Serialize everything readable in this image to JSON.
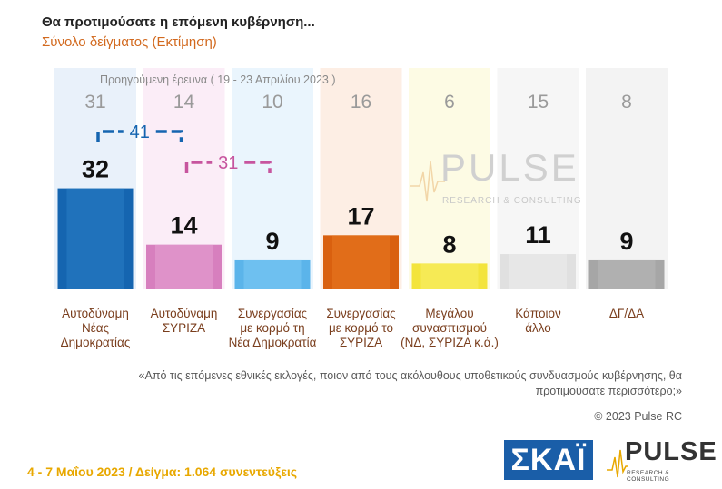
{
  "title": "Θα προτιμούσατε η επόμενη κυβέρνηση...",
  "subtitle": "Σύνολο δείγματος  (Εκτίμηση)",
  "previous_label": "Προηγούμενη έρευνα  ( 19 - 23 Απριλίου  2023 )",
  "question": "«Από τις επόμενες εθνικές εκλογές, ποιον από τους ακόλουθους υποθετικούς συνδυασμούς κυβέρνησης, θα προτιμούσατε περισσότερο;»",
  "copyright": "© 2023 Pulse RC",
  "footer": "4 - 7  Μαΐου  2023  /  Δείγμα:  1.064 συνεντεύξεις",
  "logos": {
    "skai": "ΣΚΑΪ",
    "pulse": "PULSE",
    "pulse_sub": "RESEARCH & CONSULTING",
    "watermark": "PULSE",
    "watermark_sub": "RESEARCH & CONSULTING"
  },
  "colors": {
    "bars": [
      "#1565b0",
      "#d77fbe",
      "#5bb4ea",
      "#d9600f",
      "#f3e43c",
      "#e0e0e0",
      "#a6a6a6"
    ],
    "bars_light": [
      "#2a7ec4",
      "#e6a2d2",
      "#7ecaf4",
      "#e87822",
      "#f8ee6a",
      "#ececec",
      "#b8b8b8"
    ],
    "bg": [
      "#e9f1fa",
      "#fbedf7",
      "#eaf5fd",
      "#fdeee4",
      "#fdfbe4",
      "#f6f6f6",
      "#f3f3f3"
    ],
    "bracket1": "#1565b0",
    "bracket2": "#c7559e"
  },
  "chart_data": {
    "type": "bar",
    "categories": [
      [
        "Αυτοδύναμη",
        "Νέας",
        "Δημοκρατίας"
      ],
      [
        "Αυτοδύναμη",
        "ΣΥΡΙΖΑ"
      ],
      [
        "Συνεργασίας",
        "με κορμό τη",
        "Νέα Δημοκρατία"
      ],
      [
        "Συνεργασίας",
        "με κορμό το",
        "ΣΥΡΙΖΑ"
      ],
      [
        "Μεγάλου",
        "συνασπισμού",
        "(ΝΔ, ΣΥΡΙΖΑ κ.ά.)"
      ],
      [
        "Κάποιον",
        "άλλο"
      ],
      [
        "ΔΓ/ΔΑ"
      ]
    ],
    "series": [
      {
        "name": "Current (4 - 7 Μαΐου 2023)",
        "values": [
          32,
          14,
          9,
          17,
          8,
          11,
          9
        ]
      },
      {
        "name": "Previous (19 - 23 Απριλίου 2023)",
        "values": [
          31,
          14,
          10,
          16,
          6,
          15,
          8
        ]
      }
    ],
    "brackets": [
      {
        "from": 0,
        "to": 1,
        "value": 41
      },
      {
        "from": 1,
        "to": 2,
        "value": 31
      }
    ],
    "ylim": [
      0,
      40
    ]
  }
}
